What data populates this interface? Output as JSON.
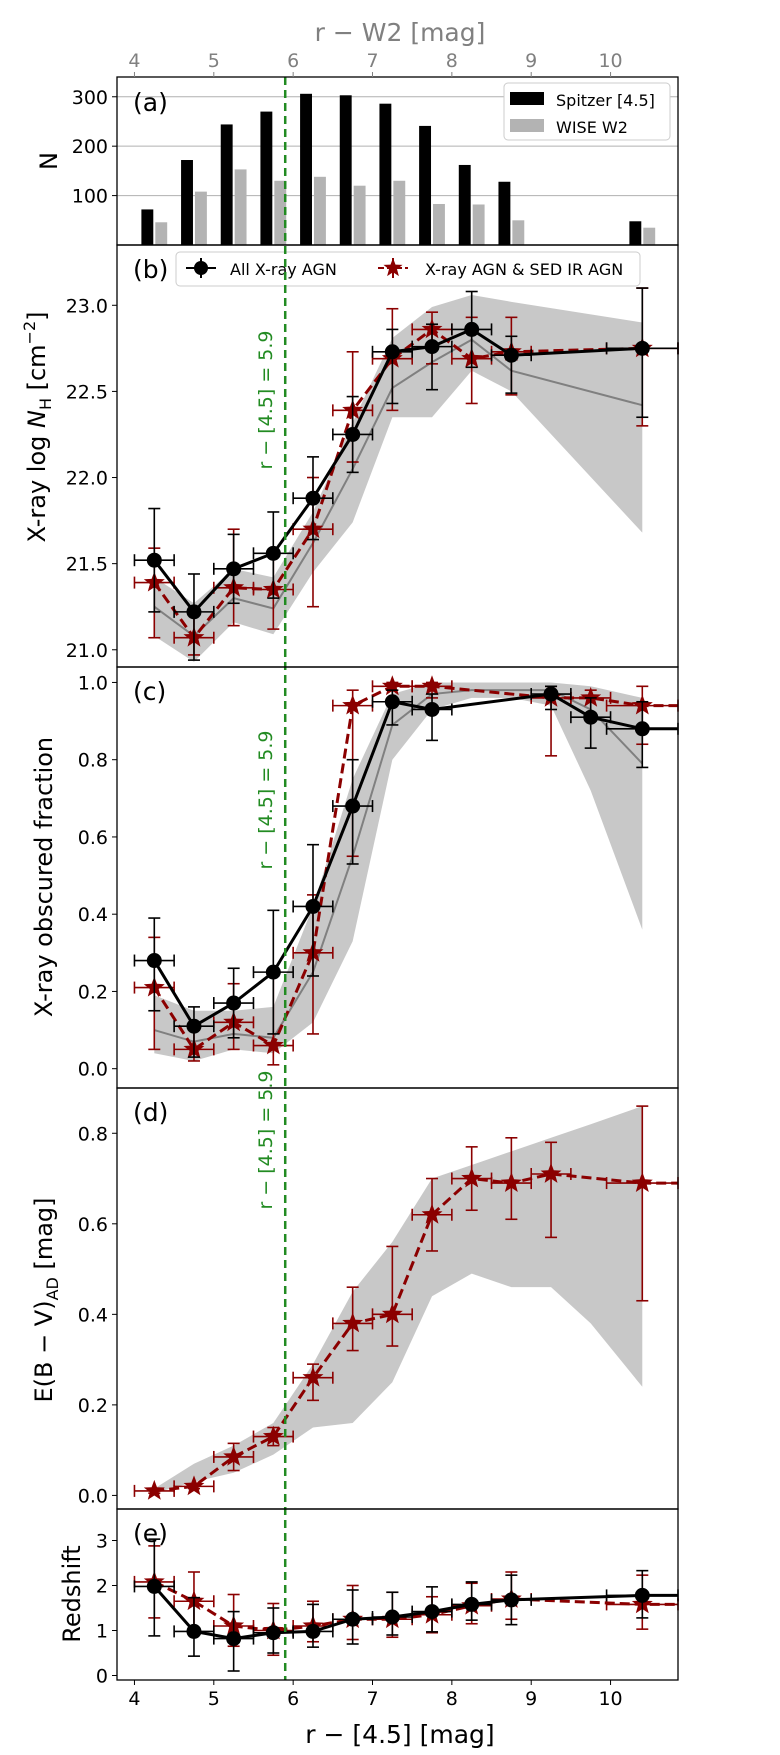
{
  "figure": {
    "bottom_xlabel": "r − [4.5] [mag]",
    "top_xlabel": "r − W2 [mag]",
    "top_ticks": [
      4,
      5,
      6,
      7,
      8,
      9,
      10
    ],
    "bottom_ticks": [
      4,
      5,
      6,
      7,
      8,
      9,
      10
    ],
    "xlim": [
      3.78,
      10.85
    ],
    "vline": {
      "x": 5.9,
      "label": "r − [4.5] = 5.9"
    },
    "colors": {
      "spitzer": "#000000",
      "wise": "#b3b3b3",
      "all_agn": "#000000",
      "ir_agn": "#8b0000",
      "shade": "#c8c8c8",
      "gray_line": "#808080",
      "vline": "#228b22",
      "top_axis": "#808080"
    }
  },
  "chart_data": [
    {
      "panel": "a",
      "type": "bar",
      "label": "(a)",
      "ylabel": "N",
      "ylim": [
        0,
        340
      ],
      "yticks": [
        100,
        200,
        300
      ],
      "grid": true,
      "legend": [
        "Spitzer [4.5]",
        "WISE W2"
      ],
      "series": [
        {
          "name": "Spitzer [4.5]",
          "x": [
            4.25,
            4.75,
            5.25,
            5.75,
            6.25,
            6.75,
            7.25,
            7.75,
            8.25,
            8.75,
            10.4
          ],
          "values": [
            72,
            172,
            244,
            270,
            306,
            303,
            286,
            241,
            162,
            128,
            48
          ]
        },
        {
          "name": "WISE W2",
          "x": [
            4.25,
            4.75,
            5.25,
            5.75,
            6.25,
            6.75,
            7.25,
            7.75,
            8.25,
            8.75,
            10.4
          ],
          "values": [
            46,
            108,
            153,
            130,
            138,
            120,
            130,
            83,
            82,
            50,
            35
          ]
        }
      ]
    },
    {
      "panel": "b",
      "type": "line",
      "label": "(b)",
      "ylabel": "X-ray log N_H [cm^-2]",
      "ylim": [
        20.9,
        23.35
      ],
      "yticks": [
        21.0,
        21.5,
        22.0,
        22.5,
        23.0
      ],
      "ytick_labels": [
        "21.0",
        "21.5",
        "22.0",
        "22.5",
        "23.0"
      ],
      "legend": [
        "All X-ray AGN",
        "X-ray AGN & SED IR AGN"
      ],
      "series": [
        {
          "name": "All X-ray AGN",
          "x": [
            4.25,
            4.75,
            5.25,
            5.75,
            6.25,
            6.75,
            7.25,
            7.75,
            8.25,
            8.75,
            10.4
          ],
          "y": [
            21.52,
            21.22,
            21.47,
            21.56,
            21.88,
            22.25,
            22.73,
            22.76,
            22.86,
            22.71,
            22.75
          ],
          "yerr_lo": [
            0.3,
            0.28,
            0.2,
            0.26,
            0.24,
            0.22,
            0.3,
            0.25,
            0.22,
            0.22,
            0.4
          ],
          "yerr_hi": [
            0.3,
            0.22,
            0.2,
            0.24,
            0.24,
            0.22,
            0.13,
            0.13,
            0.22,
            0.11,
            0.35
          ],
          "xerr": [
            0.25,
            0.25,
            0.25,
            0.25,
            0.25,
            0.25,
            0.25,
            0.25,
            0.25,
            0.25,
            0.45
          ]
        },
        {
          "name": "X-ray AGN & SED IR AGN",
          "x": [
            4.25,
            4.75,
            5.25,
            5.75,
            6.25,
            6.75,
            7.25,
            7.75,
            8.25,
            8.75,
            10.4
          ],
          "y": [
            21.39,
            21.07,
            21.36,
            21.35,
            21.7,
            22.39,
            22.69,
            22.86,
            22.69,
            22.73,
            22.75
          ],
          "yerr_lo": [
            0.32,
            0.1,
            0.22,
            0.23,
            0.45,
            0.3,
            0.3,
            0.2,
            0.26,
            0.25,
            0.45
          ],
          "yerr_hi": [
            0.2,
            0.17,
            0.34,
            0.22,
            0.3,
            0.34,
            0.29,
            0.1,
            0.24,
            0.2,
            0.35
          ],
          "xerr": [
            0.25,
            0.25,
            0.25,
            0.25,
            0.25,
            0.25,
            0.25,
            0.25,
            0.25,
            0.25,
            0.45
          ]
        },
        {
          "name": "gray",
          "x": [
            4.25,
            4.75,
            5.25,
            5.75,
            6.25,
            6.75,
            7.25,
            7.75,
            8.25,
            8.75,
            10.4
          ],
          "y": [
            21.25,
            21.08,
            21.3,
            21.24,
            21.62,
            22.05,
            22.52,
            22.67,
            22.8,
            22.62,
            22.42
          ]
        }
      ],
      "band": {
        "x": [
          4.25,
          4.75,
          5.25,
          5.75,
          6.25,
          6.75,
          7.25,
          7.75,
          8.25,
          8.75,
          10.4
        ],
        "lo": [
          21.08,
          20.93,
          21.16,
          21.09,
          21.45,
          21.74,
          22.35,
          22.35,
          22.62,
          22.5,
          21.68
        ],
        "hi": [
          21.42,
          21.27,
          21.47,
          21.42,
          21.8,
          22.32,
          22.81,
          22.99,
          23.06,
          23.02,
          22.9
        ]
      }
    },
    {
      "panel": "c",
      "type": "line",
      "label": "(c)",
      "ylabel": "X-ray obscured fraction",
      "ylim": [
        -0.05,
        1.04
      ],
      "yticks": [
        0.0,
        0.2,
        0.4,
        0.6,
        0.8,
        1.0
      ],
      "ytick_labels": [
        "0.0",
        "0.2",
        "0.4",
        "0.6",
        "0.8",
        "1.0"
      ],
      "series": [
        {
          "name": "All X-ray AGN",
          "x": [
            4.25,
            4.75,
            5.25,
            5.75,
            6.25,
            6.75,
            7.25,
            7.75,
            9.25,
            9.75,
            10.4,
            10.85
          ],
          "y": [
            0.28,
            0.11,
            0.17,
            0.25,
            0.42,
            0.68,
            0.95,
            0.93,
            0.97,
            0.91,
            0.88,
            0.88
          ],
          "yerr_lo": [
            0.13,
            0.08,
            0.09,
            0.16,
            0.18,
            0.15,
            0.06,
            0.08,
            0.04,
            0.08,
            0.1,
            0
          ],
          "yerr_hi": [
            0.11,
            0.05,
            0.09,
            0.16,
            0.16,
            0.12,
            0.03,
            0.04,
            0.02,
            0.05,
            0.07,
            0
          ],
          "xerr": [
            0.25,
            0.25,
            0.25,
            0.25,
            0.25,
            0.25,
            0.25,
            0.25,
            0.25,
            0.25,
            0.45,
            0
          ]
        },
        {
          "name": "X-ray AGN & SED IR AGN",
          "x": [
            4.25,
            4.75,
            5.25,
            5.75,
            6.25,
            6.75,
            7.25,
            7.75,
            9.25,
            9.75,
            10.4,
            10.85
          ],
          "y": [
            0.21,
            0.05,
            0.12,
            0.06,
            0.3,
            0.94,
            0.99,
            0.99,
            0.96,
            0.96,
            0.94,
            0.94
          ],
          "yerr_lo": [
            0.16,
            0.03,
            0.07,
            0.05,
            0.21,
            0.39,
            0.04,
            0.03,
            0.15,
            0.04,
            0.1,
            0
          ],
          "yerr_hi": [
            0.13,
            0.05,
            0.1,
            0.18,
            0.15,
            0.04,
            0.01,
            0.01,
            0.03,
            0.02,
            0.05,
            0
          ],
          "xerr": [
            0.25,
            0.25,
            0.25,
            0.25,
            0.25,
            0.25,
            0.25,
            0.25,
            0.25,
            0.25,
            0.45,
            0
          ]
        },
        {
          "name": "gray",
          "x": [
            4.25,
            4.75,
            5.25,
            5.75,
            6.25,
            6.75,
            7.25,
            7.75,
            8.25,
            8.75,
            9.25,
            9.75,
            10.4
          ],
          "y": [
            0.1,
            0.07,
            0.09,
            0.08,
            0.25,
            0.55,
            0.89,
            0.97,
            0.98,
            0.98,
            0.98,
            0.93,
            0.79
          ]
        }
      ],
      "band": {
        "x": [
          4.25,
          4.75,
          5.25,
          5.75,
          6.25,
          6.75,
          7.25,
          7.75,
          8.25,
          8.75,
          9.25,
          9.75,
          10.4
        ],
        "lo": [
          0.04,
          0.02,
          0.05,
          0.04,
          0.12,
          0.33,
          0.8,
          0.93,
          0.96,
          0.96,
          0.94,
          0.72,
          0.36
        ],
        "hi": [
          0.19,
          0.15,
          0.15,
          0.16,
          0.42,
          0.75,
          0.97,
          1.0,
          1.0,
          1.0,
          1.0,
          0.99,
          0.96
        ]
      }
    },
    {
      "panel": "d",
      "type": "line",
      "label": "(d)",
      "ylabel": "E(B − V)_AD [mag]",
      "ylim": [
        -0.03,
        0.9
      ],
      "yticks": [
        0.0,
        0.2,
        0.4,
        0.6,
        0.8
      ],
      "ytick_labels": [
        "0.0",
        "0.2",
        "0.4",
        "0.6",
        "0.8"
      ],
      "series": [
        {
          "name": "X-ray AGN & SED IR AGN",
          "x": [
            4.25,
            4.75,
            5.25,
            5.75,
            6.25,
            6.75,
            7.25,
            7.75,
            8.25,
            8.75,
            9.25,
            10.4,
            10.85
          ],
          "y": [
            0.01,
            0.02,
            0.085,
            0.13,
            0.26,
            0.38,
            0.4,
            0.62,
            0.7,
            0.69,
            0.71,
            0.69,
            0.69
          ],
          "yerr_lo": [
            0.005,
            0.005,
            0.03,
            0.02,
            0.05,
            0.06,
            0.07,
            0.08,
            0.07,
            0.08,
            0.14,
            0.26,
            0
          ],
          "yerr_hi": [
            0.005,
            0.005,
            0.03,
            0.02,
            0.03,
            0.08,
            0.15,
            0.08,
            0.07,
            0.1,
            0.07,
            0.17,
            0
          ],
          "xerr": [
            0.25,
            0.25,
            0.25,
            0.25,
            0.25,
            0.25,
            0.25,
            0.25,
            0.25,
            0.25,
            0.25,
            0.45,
            0
          ]
        }
      ],
      "band": {
        "x": [
          4.25,
          4.75,
          5.25,
          5.75,
          6.25,
          6.75,
          7.25,
          7.75,
          8.25,
          8.75,
          9.25,
          9.75,
          10.4
        ],
        "lo": [
          0.005,
          0.03,
          0.05,
          0.09,
          0.15,
          0.16,
          0.25,
          0.44,
          0.49,
          0.46,
          0.46,
          0.38,
          0.24
        ],
        "hi": [
          0.015,
          0.07,
          0.11,
          0.16,
          0.29,
          0.45,
          0.56,
          0.7,
          0.73,
          0.76,
          0.79,
          0.82,
          0.86
        ]
      }
    },
    {
      "panel": "e",
      "type": "line",
      "label": "(e)",
      "ylabel": "Redshift",
      "ylim": [
        -0.1,
        3.7
      ],
      "yticks": [
        0,
        1,
        2,
        3
      ],
      "ytick_labels": [
        "0",
        "1",
        "2",
        "3"
      ],
      "series": [
        {
          "name": "All X-ray AGN",
          "x": [
            4.25,
            4.75,
            5.25,
            5.75,
            6.25,
            6.75,
            7.25,
            7.75,
            8.25,
            8.75,
            10.4,
            10.85
          ],
          "y": [
            1.98,
            0.98,
            0.82,
            0.95,
            0.98,
            1.25,
            1.3,
            1.42,
            1.58,
            1.68,
            1.78,
            1.78
          ],
          "yerr_lo": [
            1.1,
            0.55,
            0.72,
            0.45,
            0.35,
            0.55,
            0.4,
            0.45,
            0.35,
            0.55,
            0.5,
            0
          ],
          "yerr_hi": [
            1.05,
            0.75,
            0.6,
            0.55,
            0.6,
            0.65,
            0.55,
            0.55,
            0.5,
            0.55,
            0.55,
            0
          ],
          "xerr": [
            0.25,
            0.25,
            0.25,
            0.25,
            0.25,
            0.25,
            0.25,
            0.25,
            0.25,
            0.25,
            0.45,
            0
          ]
        },
        {
          "name": "X-ray AGN & SED IR AGN",
          "x": [
            4.25,
            4.75,
            5.25,
            5.75,
            6.25,
            6.75,
            7.25,
            7.75,
            8.25,
            8.75,
            10.4,
            10.85
          ],
          "y": [
            2.08,
            1.65,
            1.1,
            1.0,
            1.1,
            1.25,
            1.25,
            1.35,
            1.55,
            1.7,
            1.58,
            1.58
          ],
          "yerr_lo": [
            0.8,
            0.7,
            0.45,
            0.55,
            0.35,
            0.45,
            0.4,
            0.4,
            0.4,
            0.45,
            0.55,
            0
          ],
          "yerr_hi": [
            0.8,
            0.65,
            0.7,
            0.6,
            0.55,
            0.75,
            0.6,
            0.4,
            0.5,
            0.6,
            0.65,
            0
          ],
          "xerr": [
            0.25,
            0.25,
            0.25,
            0.25,
            0.25,
            0.25,
            0.25,
            0.25,
            0.25,
            0.25,
            0.45,
            0
          ]
        }
      ]
    }
  ]
}
